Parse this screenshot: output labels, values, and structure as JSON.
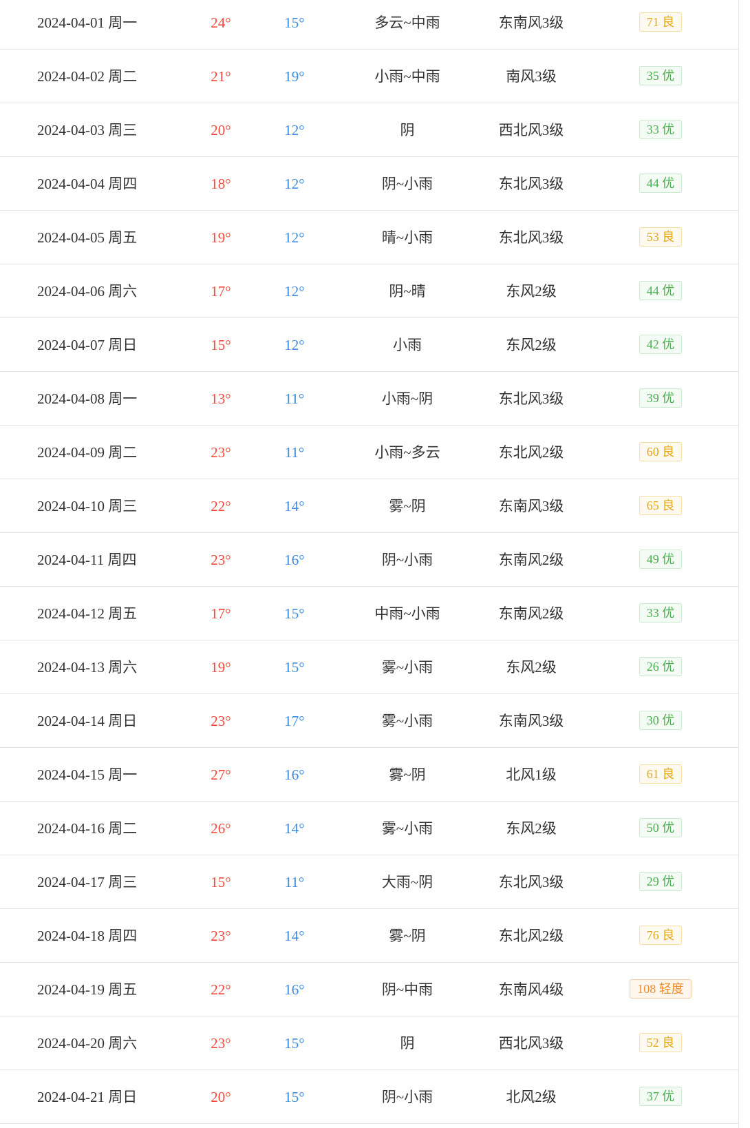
{
  "rows": [
    {
      "date": "2024-04-01 周一",
      "high": "24°",
      "low": "15°",
      "weather": "多云~中雨",
      "wind": "东南风3级",
      "aqi": "71 良",
      "aqi_level": "moderate"
    },
    {
      "date": "2024-04-02 周二",
      "high": "21°",
      "low": "19°",
      "weather": "小雨~中雨",
      "wind": "南风3级",
      "aqi": "35 优",
      "aqi_level": "good"
    },
    {
      "date": "2024-04-03 周三",
      "high": "20°",
      "low": "12°",
      "weather": "阴",
      "wind": "西北风3级",
      "aqi": "33 优",
      "aqi_level": "good"
    },
    {
      "date": "2024-04-04 周四",
      "high": "18°",
      "low": "12°",
      "weather": "阴~小雨",
      "wind": "东北风3级",
      "aqi": "44 优",
      "aqi_level": "good"
    },
    {
      "date": "2024-04-05 周五",
      "high": "19°",
      "low": "12°",
      "weather": "晴~小雨",
      "wind": "东北风3级",
      "aqi": "53 良",
      "aqi_level": "moderate"
    },
    {
      "date": "2024-04-06 周六",
      "high": "17°",
      "low": "12°",
      "weather": "阴~晴",
      "wind": "东风2级",
      "aqi": "44 优",
      "aqi_level": "good"
    },
    {
      "date": "2024-04-07 周日",
      "high": "15°",
      "low": "12°",
      "weather": "小雨",
      "wind": "东风2级",
      "aqi": "42 优",
      "aqi_level": "good"
    },
    {
      "date": "2024-04-08 周一",
      "high": "13°",
      "low": "11°",
      "weather": "小雨~阴",
      "wind": "东北风3级",
      "aqi": "39 优",
      "aqi_level": "good"
    },
    {
      "date": "2024-04-09 周二",
      "high": "23°",
      "low": "11°",
      "weather": "小雨~多云",
      "wind": "东北风2级",
      "aqi": "60 良",
      "aqi_level": "moderate"
    },
    {
      "date": "2024-04-10 周三",
      "high": "22°",
      "low": "14°",
      "weather": "雾~阴",
      "wind": "东南风3级",
      "aqi": "65 良",
      "aqi_level": "moderate"
    },
    {
      "date": "2024-04-11 周四",
      "high": "23°",
      "low": "16°",
      "weather": "阴~小雨",
      "wind": "东南风2级",
      "aqi": "49 优",
      "aqi_level": "good"
    },
    {
      "date": "2024-04-12 周五",
      "high": "17°",
      "low": "15°",
      "weather": "中雨~小雨",
      "wind": "东南风2级",
      "aqi": "33 优",
      "aqi_level": "good"
    },
    {
      "date": "2024-04-13 周六",
      "high": "19°",
      "low": "15°",
      "weather": "雾~小雨",
      "wind": "东风2级",
      "aqi": "26 优",
      "aqi_level": "good"
    },
    {
      "date": "2024-04-14 周日",
      "high": "23°",
      "low": "17°",
      "weather": "雾~小雨",
      "wind": "东南风3级",
      "aqi": "30 优",
      "aqi_level": "good"
    },
    {
      "date": "2024-04-15 周一",
      "high": "27°",
      "low": "16°",
      "weather": "雾~阴",
      "wind": "北风1级",
      "aqi": "61 良",
      "aqi_level": "moderate"
    },
    {
      "date": "2024-04-16 周二",
      "high": "26°",
      "low": "14°",
      "weather": "雾~小雨",
      "wind": "东风2级",
      "aqi": "50 优",
      "aqi_level": "good"
    },
    {
      "date": "2024-04-17 周三",
      "high": "15°",
      "low": "11°",
      "weather": "大雨~阴",
      "wind": "东北风3级",
      "aqi": "29 优",
      "aqi_level": "good"
    },
    {
      "date": "2024-04-18 周四",
      "high": "23°",
      "low": "14°",
      "weather": "雾~阴",
      "wind": "东北风2级",
      "aqi": "76 良",
      "aqi_level": "moderate"
    },
    {
      "date": "2024-04-19 周五",
      "high": "22°",
      "low": "16°",
      "weather": "阴~中雨",
      "wind": "东南风4级",
      "aqi": "108 轻度",
      "aqi_level": "light"
    },
    {
      "date": "2024-04-20 周六",
      "high": "23°",
      "low": "15°",
      "weather": "阴",
      "wind": "西北风3级",
      "aqi": "52 良",
      "aqi_level": "moderate"
    },
    {
      "date": "2024-04-21 周日",
      "high": "20°",
      "low": "15°",
      "weather": "阴~小雨",
      "wind": "北风2级",
      "aqi": "37 优",
      "aqi_level": "good"
    }
  ],
  "colors": {
    "high_temp": "#f5473b",
    "low_temp": "#3b8ee0",
    "aqi_good": "#4caf50",
    "aqi_moderate": "#e2a81a",
    "aqi_light": "#ee8d2c"
  }
}
